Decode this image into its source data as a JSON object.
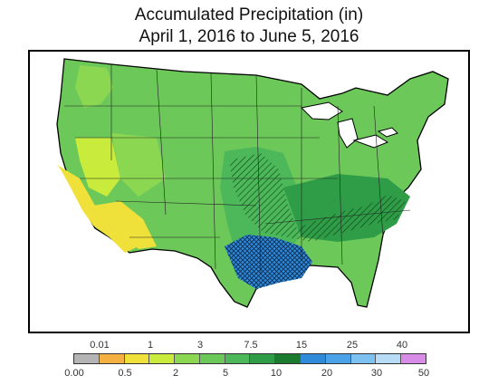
{
  "title_line1": "Accumulated Precipitation (in)",
  "title_line2": "April 1, 2016 to June 5, 2016",
  "legend": {
    "colors": [
      "#b4b4b4",
      "#f5b042",
      "#f0e13a",
      "#c8eb3c",
      "#8cd752",
      "#6dc85a",
      "#4cb85a",
      "#2f9c47",
      "#1a7a2d",
      "#2f8ad9",
      "#4aa3e8",
      "#7cc1f2",
      "#b7dcf5",
      "#d98be8"
    ],
    "top_labels": [
      "0.01",
      "1",
      "3",
      "7.5",
      "15",
      "25",
      "40"
    ],
    "bottom_labels": [
      "0.00",
      "0.5",
      "2",
      "5",
      "10",
      "20",
      "30",
      "50"
    ]
  },
  "map": {
    "background_color": "#ffffff",
    "dominant_color": "#6dc85a",
    "southwest_color": "#f0e13a",
    "southcentral_color": "#2f9c47",
    "texas_hatch_color": "#2f8ad9"
  }
}
